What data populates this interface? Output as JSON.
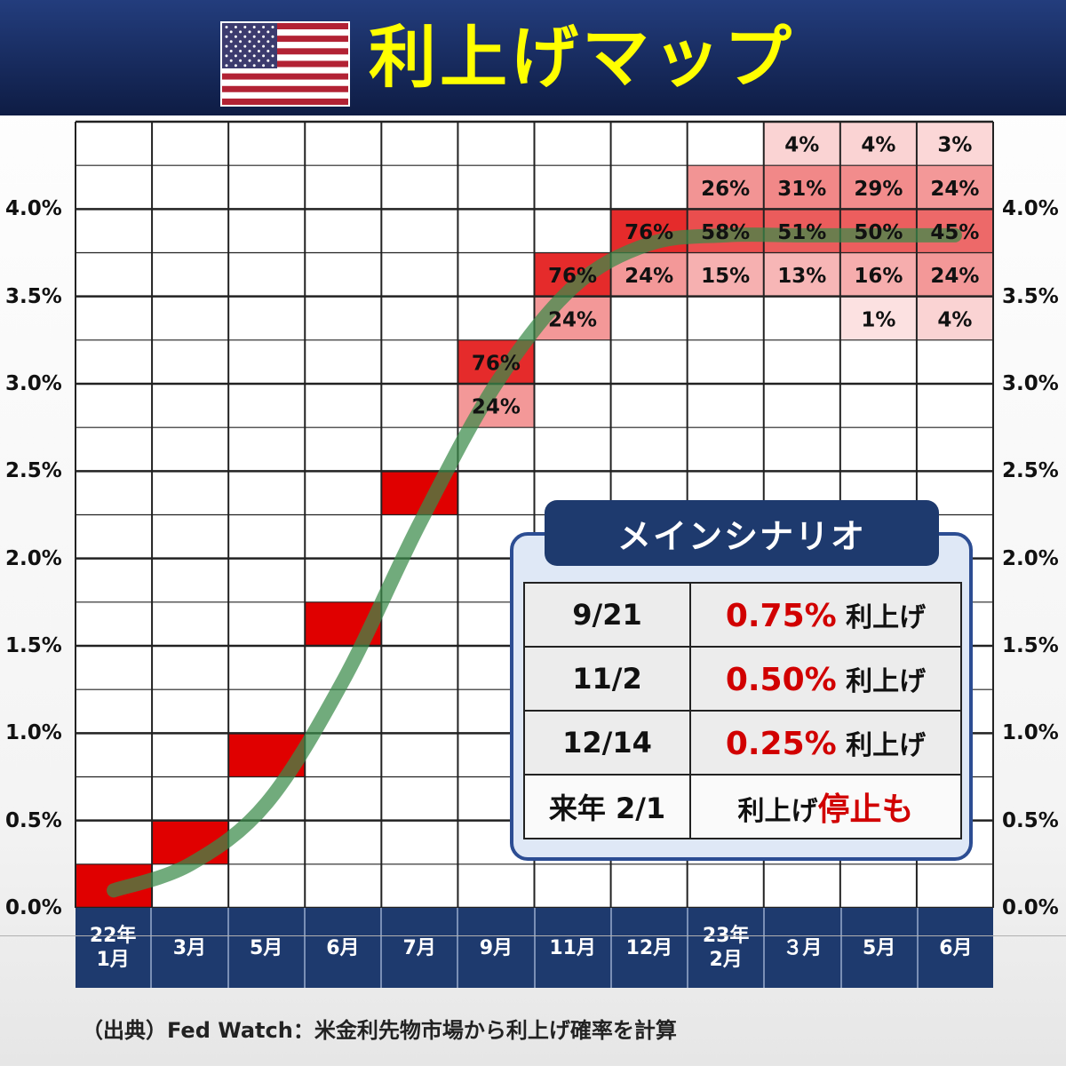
{
  "header": {
    "title": "利上げマップ",
    "flag_icon": "us-flag-icon"
  },
  "chart_data": {
    "type": "heatmap",
    "x_categories": [
      "22年\n1月",
      "3月",
      "5月",
      "6月",
      "7月",
      "9月",
      "11月",
      "12月",
      "23年\n2月",
      "３月",
      "5月",
      "6月"
    ],
    "y_tick_labels": [
      "0.0%",
      "0.5%",
      "1.0%",
      "1.5%",
      "2.0%",
      "2.5%",
      "3.0%",
      "3.5%",
      "4.0%"
    ],
    "y_range": [
      0,
      4.5
    ],
    "y_step": 0.25,
    "cells": [
      {
        "x": 0,
        "y": 0,
        "label": "",
        "p": 100
      },
      {
        "x": 1,
        "y": 0.25,
        "label": "",
        "p": 100
      },
      {
        "x": 2,
        "y": 0.75,
        "label": "",
        "p": 100
      },
      {
        "x": 3,
        "y": 1.5,
        "label": "",
        "p": 100
      },
      {
        "x": 4,
        "y": 2.25,
        "label": "",
        "p": 100
      },
      {
        "x": 5,
        "y": 3.0,
        "label": "76%",
        "p": 76
      },
      {
        "x": 5,
        "y": 2.75,
        "label": "24%",
        "p": 24
      },
      {
        "x": 6,
        "y": 3.5,
        "label": "76%",
        "p": 76
      },
      {
        "x": 6,
        "y": 3.25,
        "label": "24%",
        "p": 24
      },
      {
        "x": 7,
        "y": 3.75,
        "label": "76%",
        "p": 76
      },
      {
        "x": 7,
        "y": 3.5,
        "label": "24%",
        "p": 24
      },
      {
        "x": 8,
        "y": 4.0,
        "label": "26%",
        "p": 26
      },
      {
        "x": 8,
        "y": 3.75,
        "label": "58%",
        "p": 58
      },
      {
        "x": 8,
        "y": 3.5,
        "label": "15%",
        "p": 15
      },
      {
        "x": 9,
        "y": 4.25,
        "label": "4%",
        "p": 4
      },
      {
        "x": 9,
        "y": 4.0,
        "label": "31%",
        "p": 31
      },
      {
        "x": 9,
        "y": 3.75,
        "label": "51%",
        "p": 51
      },
      {
        "x": 9,
        "y": 3.5,
        "label": "13%",
        "p": 13
      },
      {
        "x": 10,
        "y": 4.25,
        "label": "4%",
        "p": 4
      },
      {
        "x": 10,
        "y": 4.0,
        "label": "29%",
        "p": 29
      },
      {
        "x": 10,
        "y": 3.75,
        "label": "50%",
        "p": 50
      },
      {
        "x": 10,
        "y": 3.5,
        "label": "16%",
        "p": 16
      },
      {
        "x": 10,
        "y": 3.25,
        "label": "1%",
        "p": 1
      },
      {
        "x": 11,
        "y": 4.25,
        "label": "3%",
        "p": 3
      },
      {
        "x": 11,
        "y": 4.0,
        "label": "24%",
        "p": 24
      },
      {
        "x": 11,
        "y": 3.75,
        "label": "45%",
        "p": 45
      },
      {
        "x": 11,
        "y": 3.5,
        "label": "24%",
        "p": 24
      },
      {
        "x": 11,
        "y": 3.25,
        "label": "4%",
        "p": 4
      }
    ],
    "trend_curve": {
      "color": "#3a8a4a",
      "points": [
        [
          0,
          0.1
        ],
        [
          1,
          0.25
        ],
        [
          2,
          0.6
        ],
        [
          3,
          1.3
        ],
        [
          4,
          2.2
        ],
        [
          5,
          3.0
        ],
        [
          6,
          3.55
        ],
        [
          7,
          3.8
        ],
        [
          8,
          3.85
        ],
        [
          9,
          3.85
        ],
        [
          10,
          3.85
        ],
        [
          11,
          3.85
        ]
      ]
    },
    "colors": {
      "high": "#e00000",
      "low": "#fde8e8"
    }
  },
  "main_scenario": {
    "title": "メインシナリオ",
    "rows": [
      {
        "date": "9/21",
        "rate": "0.75%",
        "action": "利上げ"
      },
      {
        "date": "11/2",
        "rate": "0.50%",
        "action": "利上げ"
      },
      {
        "date": "12/14",
        "rate": "0.25%",
        "action": "利上げ"
      },
      {
        "date": "来年 2/1",
        "prefix": "利上げ",
        "emphasis": "停止も"
      }
    ]
  },
  "source": "（出典）Fed Watch：米金利先物市場から利上げ確率を計算"
}
